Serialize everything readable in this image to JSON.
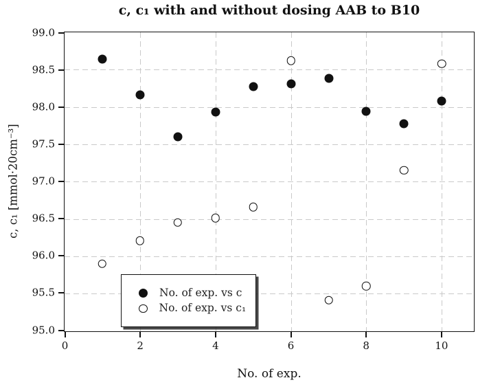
{
  "figure": {
    "background": "#ffffff"
  },
  "chart_data": {
    "type": "scatter",
    "title": "c, c₁ with and without dosing AAB to B10",
    "xlabel": "No. of exp.",
    "ylabel": "c, c₁ [mmol·20cm⁻³]",
    "xlim": [
      0,
      10.85
    ],
    "ylim": [
      95.0,
      99.0
    ],
    "grid": true,
    "legend_position": "lower-left",
    "x": [
      1,
      2,
      3,
      4,
      5,
      6,
      7,
      8,
      9,
      10
    ],
    "series": [
      {
        "id": "c",
        "name": "No. of exp. vs c",
        "marker": "filled",
        "values": [
          98.64,
          98.16,
          97.6,
          97.93,
          98.27,
          98.31,
          98.38,
          97.94,
          97.78,
          98.08
        ]
      },
      {
        "id": "c1",
        "name": "No. of exp. vs c₁",
        "marker": "open",
        "values": [
          95.9,
          96.21,
          96.45,
          96.51,
          96.66,
          98.62,
          95.41,
          95.6,
          97.15,
          98.58
        ]
      }
    ],
    "xticks": {
      "values": [
        0,
        2,
        4,
        6,
        8,
        10
      ],
      "labels": [
        "0",
        "2",
        "4",
        "6",
        "8",
        "10"
      ]
    },
    "yticks": {
      "values": [
        95.0,
        95.5,
        96.0,
        96.5,
        97.0,
        97.5,
        98.0,
        98.5,
        99.0
      ],
      "labels": [
        "95.0",
        "95.5",
        "96.0",
        "96.5",
        "97.0",
        "97.5",
        "98.0",
        "98.5",
        "99.0"
      ]
    },
    "colors": {
      "marker": "#111111",
      "grid": "#c9c9c9",
      "axis": "#111111",
      "text": "#1a1a1a"
    }
  }
}
